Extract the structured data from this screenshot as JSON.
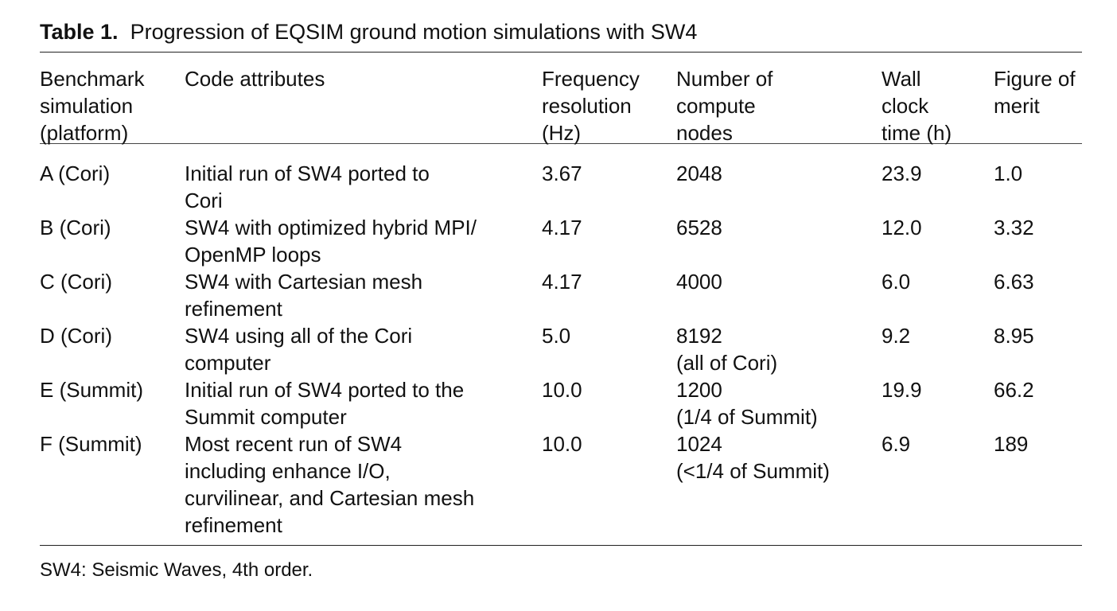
{
  "caption": {
    "label": "Table 1.",
    "text": "Progression of EQSIM ground motion simulations with SW4"
  },
  "table": {
    "headers": [
      "Benchmark\nsimulation\n(platform)",
      "Code attributes",
      "Frequency\nresolution\n(Hz)",
      "Number of\ncompute\nnodes",
      "Wall\nclock\ntime (h)",
      "Figure of\nmerit"
    ],
    "rows": [
      {
        "benchmark": "A (Cori)",
        "attributes": "Initial run of SW4 ported to\nCori",
        "frequency": "3.67",
        "nodes": "2048",
        "wall_time": "23.9",
        "merit": "1.0"
      },
      {
        "benchmark": "B (Cori)",
        "attributes": "SW4 with optimized hybrid MPI/\nOpenMP loops",
        "frequency": "4.17",
        "nodes": "6528",
        "wall_time": "12.0",
        "merit": "3.32"
      },
      {
        "benchmark": "C (Cori)",
        "attributes": "SW4 with Cartesian mesh\nrefinement",
        "frequency": "4.17",
        "nodes": "4000",
        "wall_time": "6.0",
        "merit": "6.63"
      },
      {
        "benchmark": "D (Cori)",
        "attributes": "SW4 using all of the Cori\ncomputer",
        "frequency": "5.0",
        "nodes": "8192\n(all of Cori)",
        "wall_time": "9.2",
        "merit": "8.95"
      },
      {
        "benchmark": "E (Summit)",
        "attributes": "Initial run of SW4 ported to the\nSummit computer",
        "frequency": "10.0",
        "nodes": "1200\n(1/4 of Summit)",
        "wall_time": "19.9",
        "merit": "66.2"
      },
      {
        "benchmark": "F (Summit)",
        "attributes": "Most recent run of SW4\nincluding enhance I/O,\ncurvilinear, and Cartesian mesh\nrefinement",
        "frequency": "10.0",
        "nodes": "1024\n(<1/4 of Summit)",
        "wall_time": "6.9",
        "merit": "189"
      }
    ]
  },
  "footnote": "SW4: Seismic Waves, 4th order."
}
